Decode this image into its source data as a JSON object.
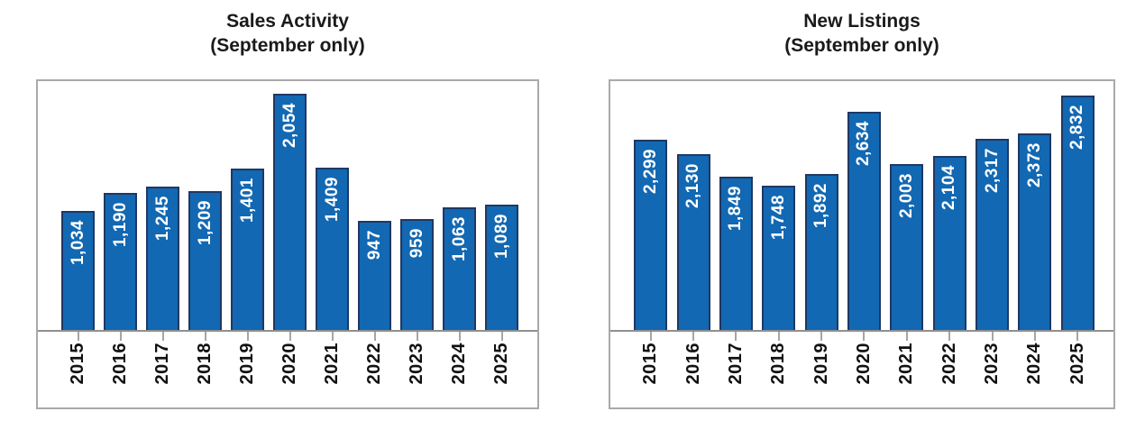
{
  "colors": {
    "bar_fill": "#1268b2",
    "bar_border": "#1f3864",
    "bar_label_text": "#ffffff",
    "axis_line": "#8f8f8f",
    "tick": "#a6a6a6",
    "frame_border": "#a9a9a9",
    "title_text": "#1a1a1a"
  },
  "chart_data": [
    {
      "type": "bar",
      "title": "Sales Activity",
      "subtitle": "(September only)",
      "xlabel": "",
      "ylabel": "",
      "categories": [
        "2015",
        "2016",
        "2017",
        "2018",
        "2019",
        "2020",
        "2021",
        "2022",
        "2023",
        "2024",
        "2025"
      ],
      "values": [
        1034,
        1190,
        1245,
        1209,
        1401,
        2054,
        1409,
        947,
        959,
        1063,
        1089
      ],
      "labels": [
        "1,034",
        "1,190",
        "1,245",
        "1,209",
        "1,401",
        "2,054",
        "1,409",
        "947",
        "959",
        "1,063",
        "1,089"
      ],
      "ylim": [
        0,
        2160
      ],
      "grid": false,
      "legend": "none",
      "label_position": "inside-end-rotated"
    },
    {
      "type": "bar",
      "title": "New Listings",
      "subtitle": "(September only)",
      "xlabel": "",
      "ylabel": "",
      "categories": [
        "2015",
        "2016",
        "2017",
        "2018",
        "2019",
        "2020",
        "2021",
        "2022",
        "2023",
        "2024",
        "2025"
      ],
      "values": [
        2299,
        2130,
        1849,
        1748,
        1892,
        2634,
        2003,
        2104,
        2317,
        2373,
        2832
      ],
      "labels": [
        "2,299",
        "2,130",
        "1,849",
        "1,748",
        "1,892",
        "2,634",
        "2,003",
        "2,104",
        "2,317",
        "2,373",
        "2,832"
      ],
      "ylim": [
        0,
        3010
      ],
      "grid": false,
      "legend": "none",
      "label_position": "inside-end-rotated"
    }
  ]
}
